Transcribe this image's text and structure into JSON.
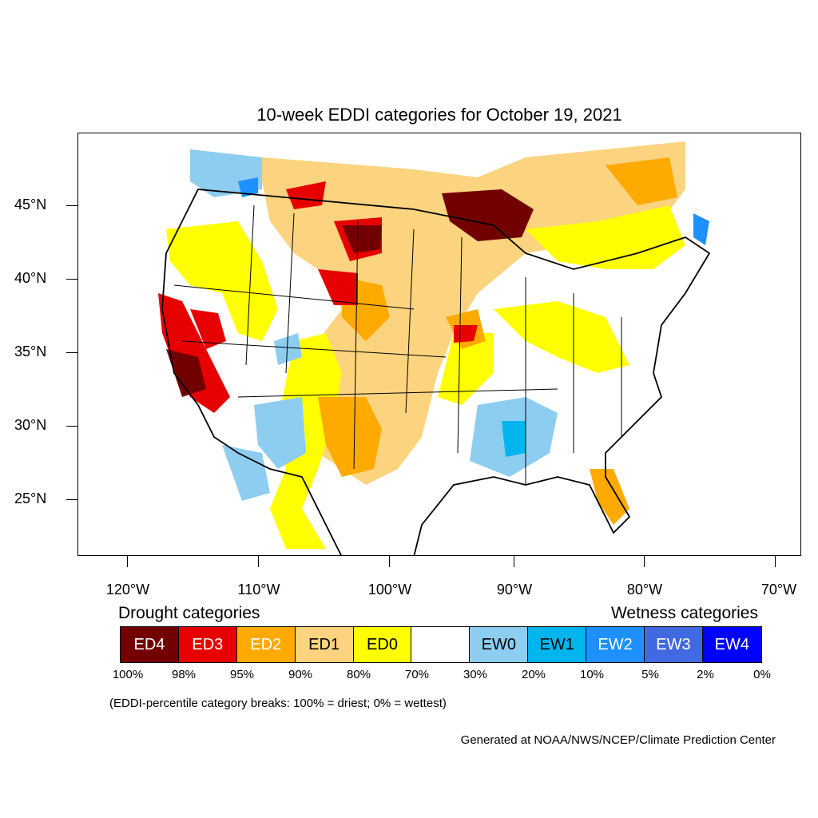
{
  "title": "10-week EDDI categories for October 19, 2021",
  "lat_labels": [
    "45°N",
    "40°N",
    "35°N",
    "30°N",
    "25°N"
  ],
  "lon_labels": [
    "120°W",
    "110°W",
    "100°W",
    "90°W",
    "80°W",
    "70°W"
  ],
  "legend": {
    "drought_title": "Drought categories",
    "wetness_title": "Wetness categories",
    "categories": [
      {
        "label": "ED4",
        "color": "#730000",
        "text_color": "#ffffff"
      },
      {
        "label": "ED3",
        "color": "#e60000",
        "text_color": "#ffffff"
      },
      {
        "label": "ED2",
        "color": "#ffaa00",
        "text_color": "#ffffff"
      },
      {
        "label": "ED1",
        "color": "#fcd37f",
        "text_color": "#000000"
      },
      {
        "label": "ED0",
        "color": "#ffff00",
        "text_color": "#000000"
      },
      {
        "label": "",
        "color": "#ffffff",
        "text_color": "#000000"
      },
      {
        "label": "EW0",
        "color": "#8dcdf0",
        "text_color": "#000000"
      },
      {
        "label": "EW1",
        "color": "#00b4ee",
        "text_color": "#000000"
      },
      {
        "label": "EW2",
        "color": "#1e90ff",
        "text_color": "#ffffff"
      },
      {
        "label": "EW3",
        "color": "#4169e1",
        "text_color": "#ffffff"
      },
      {
        "label": "EW4",
        "color": "#0000ff",
        "text_color": "#ffffff"
      }
    ],
    "breaks": [
      "100%",
      "98%",
      "95%",
      "90%",
      "80%",
      "70%",
      "30%",
      "20%",
      "10%",
      "5%",
      "2%",
      "0%"
    ]
  },
  "note": "(EDDI-percentile category breaks: 100% = driest; 0% = wettest)",
  "credit": "Generated at NOAA/NWS/NCEP/Climate Prediction Center"
}
